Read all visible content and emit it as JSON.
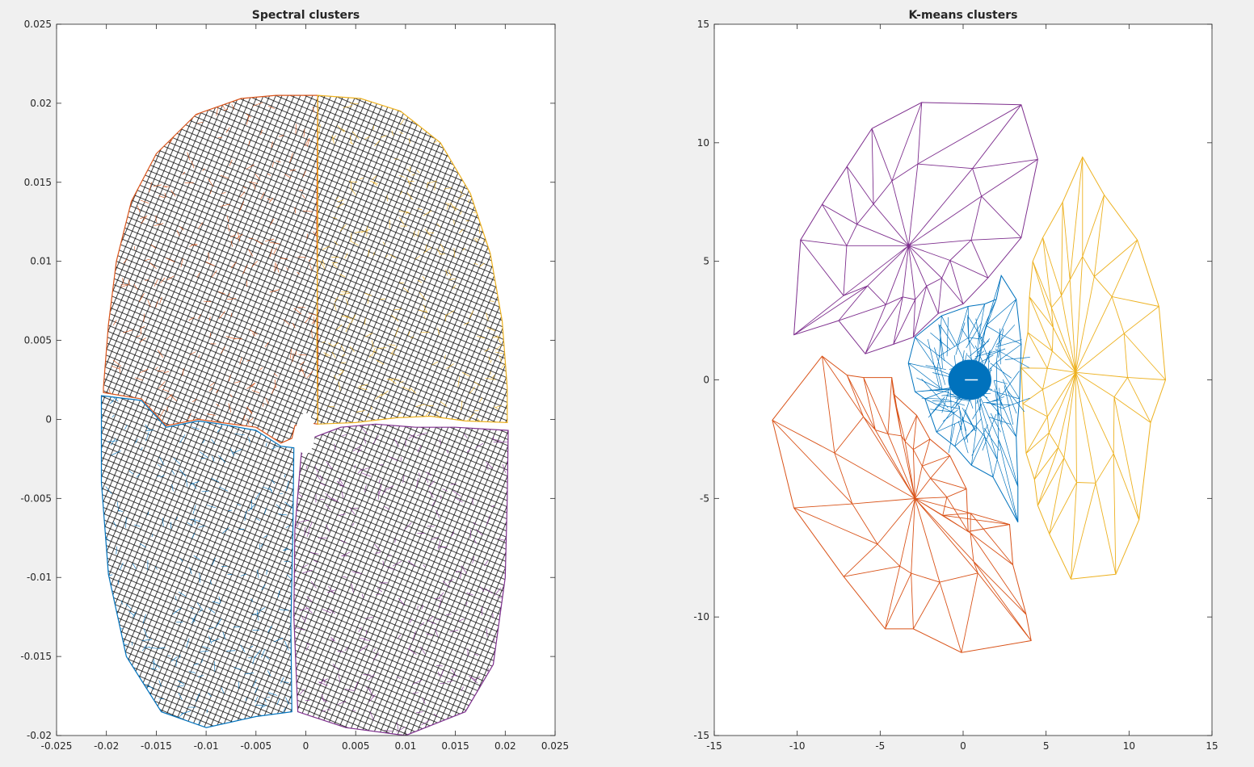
{
  "chart_data": [
    {
      "type": "scatter",
      "title": "Spectral clusters",
      "xlabel": "",
      "ylabel": "",
      "xlim": [
        -0.025,
        0.025
      ],
      "ylim": [
        -0.02,
        0.025
      ],
      "xticks": [
        -0.025,
        -0.02,
        -0.015,
        -0.01,
        -0.005,
        0,
        0.005,
        0.01,
        0.015,
        0.02,
        0.025
      ],
      "yticks": [
        -0.02,
        -0.015,
        -0.01,
        -0.005,
        0,
        0.005,
        0.01,
        0.015,
        0.02,
        0.025
      ],
      "xtick_labels": [
        "-0.025",
        "-0.02",
        "-0.015",
        "-0.01",
        "-0.005",
        "0",
        "0.005",
        "0.01",
        "0.015",
        "0.02",
        "0.025"
      ],
      "ytick_labels": [
        "-0.02",
        "-0.015",
        "-0.01",
        "-0.005",
        "0",
        "0.005",
        "0.01",
        "0.015",
        "0.02",
        "0.025"
      ],
      "grid": false,
      "series": [
        {
          "color": "#d95319",
          "outline": [
            [
              -0.0203,
              0.002
            ],
            [
              -0.0198,
              0.006
            ],
            [
              -0.019,
              0.01
            ],
            [
              -0.0175,
              0.0138
            ],
            [
              -0.015,
              0.0168
            ],
            [
              -0.011,
              0.0193
            ],
            [
              -0.0065,
              0.0203
            ],
            [
              -0.003,
              0.0205
            ],
            [
              0.0012,
              0.0205
            ],
            [
              0.0011,
              0.0125
            ],
            [
              0.0012,
              0.005
            ],
            [
              0.0012,
              -0.0003
            ],
            [
              0.0001,
              -0.0002
            ],
            [
              -0.0011,
              -0.0004
            ],
            [
              -0.0014,
              -0.0012
            ],
            [
              -0.0025,
              -0.0015
            ],
            [
              -0.005,
              -0.0005
            ],
            [
              -0.0085,
              -0.0002
            ],
            [
              -0.0108,
              0
            ],
            [
              -0.014,
              -0.0004
            ],
            [
              -0.0165,
              0.0013
            ],
            [
              -0.0203,
              0.0017
            ]
          ]
        },
        {
          "color": "#edb120",
          "outline": [
            [
              0.0012,
              0.0205
            ],
            [
              0.0055,
              0.0203
            ],
            [
              0.0095,
              0.0195
            ],
            [
              0.0135,
              0.0175
            ],
            [
              0.0165,
              0.0143
            ],
            [
              0.0185,
              0.0105
            ],
            [
              0.0197,
              0.0062
            ],
            [
              0.0202,
              0.002
            ],
            [
              0.0202,
              -0.0002
            ],
            [
              0.016,
              -0.0001
            ],
            [
              0.0125,
              0.0002
            ],
            [
              0.009,
              0.0001
            ],
            [
              0.005,
              -0.0002
            ],
            [
              0.0012,
              -0.0003
            ],
            [
              0.0011,
              0.005
            ],
            [
              0.0012,
              0.0125
            ]
          ]
        },
        {
          "color": "#0072bd",
          "outline": [
            [
              -0.0205,
              0.0015
            ],
            [
              -0.0165,
              0.0012
            ],
            [
              -0.014,
              -0.0005
            ],
            [
              -0.0108,
              -0.0001
            ],
            [
              -0.0085,
              -0.0003
            ],
            [
              -0.005,
              -0.0007
            ],
            [
              -0.0025,
              -0.0017
            ],
            [
              -0.0012,
              -0.0018
            ],
            [
              -0.0013,
              -0.007
            ],
            [
              -0.0015,
              -0.013
            ],
            [
              -0.0014,
              -0.0185
            ],
            [
              -0.005,
              -0.0188
            ],
            [
              -0.01,
              -0.0195
            ],
            [
              -0.0145,
              -0.0185
            ],
            [
              -0.018,
              -0.015
            ],
            [
              -0.0198,
              -0.0098
            ],
            [
              -0.0205,
              -0.004
            ]
          ]
        },
        {
          "color": "#7e2f8e",
          "outline": [
            [
              -0.0003,
              -0.0014
            ],
            [
              0.0035,
              -0.0005
            ],
            [
              0.007,
              -0.0003
            ],
            [
              0.011,
              -0.0005
            ],
            [
              0.015,
              -0.0005
            ],
            [
              0.0203,
              -0.0007
            ],
            [
              0.0202,
              -0.005
            ],
            [
              0.02,
              -0.01
            ],
            [
              0.0188,
              -0.0155
            ],
            [
              0.016,
              -0.0185
            ],
            [
              0.01,
              -0.02
            ],
            [
              0.004,
              -0.0195
            ],
            [
              -0.0008,
              -0.0185
            ],
            [
              -0.0012,
              -0.0125
            ],
            [
              -0.0011,
              -0.007
            ],
            [
              -0.0005,
              -0.0025
            ]
          ]
        }
      ],
      "hole": {
        "center": [
          -5e-05,
          -0.0009
        ],
        "radii": [
          0.00095,
          0.0013
        ]
      }
    },
    {
      "type": "scatter",
      "title": "K-means clusters",
      "xlabel": "",
      "ylabel": "",
      "xlim": [
        -15,
        15
      ],
      "ylim": [
        -15,
        15
      ],
      "xticks": [
        -15,
        -10,
        -5,
        0,
        5,
        10,
        15
      ],
      "yticks": [
        -15,
        -10,
        -5,
        0,
        5,
        10,
        15
      ],
      "xtick_labels": [
        "-15",
        "-10",
        "-5",
        "0",
        "5",
        "10",
        "15"
      ],
      "ytick_labels": [
        "-15",
        "-10",
        "-5",
        "0",
        "5",
        "10",
        "15"
      ],
      "grid": false,
      "series": [
        {
          "color": "#7e2f8e",
          "outline": [
            [
              -5.5,
              10.6
            ],
            [
              -2.5,
              11.7
            ],
            [
              3.5,
              11.6
            ],
            [
              4.5,
              9.3
            ],
            [
              3.5,
              6
            ],
            [
              1.5,
              4.3
            ],
            [
              0,
              3.2
            ],
            [
              -1.5,
              2.8
            ],
            [
              -3,
              1.8
            ],
            [
              -4.2,
              1.5
            ],
            [
              -5.9,
              1.1
            ],
            [
              -7.5,
              2.5
            ],
            [
              -10.2,
              1.9
            ],
            [
              -9.8,
              5.9
            ],
            [
              -8.5,
              7.4
            ],
            [
              -7,
              9
            ]
          ]
        },
        {
          "color": "#edb120",
          "outline": [
            [
              7.2,
              9.4
            ],
            [
              8.5,
              7.8
            ],
            [
              10.5,
              5.9
            ],
            [
              11.8,
              3.1
            ],
            [
              12.2,
              0
            ],
            [
              11.3,
              -1.8
            ],
            [
              10.6,
              -5.9
            ],
            [
              9.2,
              -8.2
            ],
            [
              6.5,
              -8.4
            ],
            [
              5.2,
              -6.5
            ],
            [
              4.5,
              -5.3
            ],
            [
              4.3,
              -4.2
            ],
            [
              3.8,
              -3.1
            ],
            [
              3.6,
              -1
            ],
            [
              3.5,
              0.5
            ],
            [
              3.9,
              2
            ],
            [
              4,
              3.5
            ],
            [
              4.2,
              5
            ],
            [
              4.8,
              6
            ],
            [
              6,
              7.5
            ]
          ]
        },
        {
          "color": "#d95319",
          "outline": [
            [
              -8.5,
              1
            ],
            [
              -7,
              0.2
            ],
            [
              -6,
              0.1
            ],
            [
              -4.3,
              0.1
            ],
            [
              -4.2,
              -0.6
            ],
            [
              -2.8,
              -1.5
            ],
            [
              -2,
              -2.5
            ],
            [
              -0.8,
              -3.2
            ],
            [
              0.2,
              -4.6
            ],
            [
              0.3,
              -6.4
            ],
            [
              2.8,
              -6.1
            ],
            [
              3,
              -7.8
            ],
            [
              3.8,
              -9.9
            ],
            [
              4.1,
              -11
            ],
            [
              -0.1,
              -11.5
            ],
            [
              -3,
              -10.5
            ],
            [
              -4.7,
              -10.5
            ],
            [
              -7.2,
              -8.3
            ],
            [
              -10.2,
              -5.4
            ],
            [
              -11.5,
              -1.7
            ]
          ]
        },
        {
          "color": "#0072bd",
          "outline": [
            [
              2.3,
              4.4
            ],
            [
              3.2,
              3.4
            ],
            [
              3.5,
              1.5
            ],
            [
              3.4,
              -0.8
            ],
            [
              3.2,
              -2.4
            ],
            [
              3.3,
              -4.5
            ],
            [
              3.3,
              -6
            ],
            [
              1.8,
              -4.1
            ],
            [
              0.5,
              -3.6
            ],
            [
              -0.5,
              -2.8
            ],
            [
              -1.6,
              -2.2
            ],
            [
              -2.3,
              -0.8
            ],
            [
              -2.9,
              -0.5
            ],
            [
              -3.3,
              0.7
            ],
            [
              -2.9,
              1.8
            ],
            [
              -1.3,
              2.7
            ],
            [
              0.3,
              3.1
            ],
            [
              1.3,
              3.2
            ],
            [
              2,
              3.4
            ]
          ]
        }
      ],
      "core": {
        "center": [
          0.4,
          0
        ],
        "radii": [
          1.3,
          0.85
        ],
        "color": "#0072bd"
      }
    }
  ]
}
